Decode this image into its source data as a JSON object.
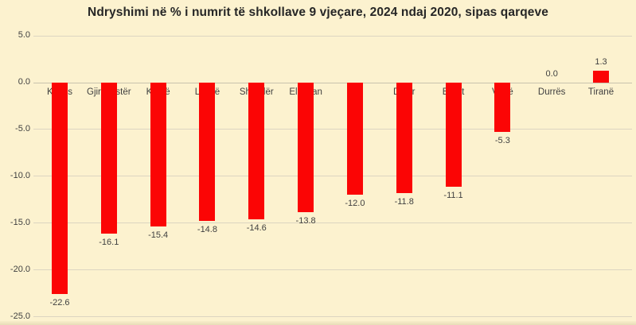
{
  "chart_data": {
    "type": "bar",
    "title": "Ndryshimi në % i numrit të shkollave 9 vjeçare, 2024 ndaj 2020, sipas qarqeve",
    "categories": [
      "Kukës",
      "Gjirokastër",
      "Korçë",
      "Lezhë",
      "Shkodër",
      "Elbasan",
      "Fier",
      "Dibër",
      "Berat",
      "Vlorë",
      "Durrës",
      "Tiranë"
    ],
    "values": [
      -22.6,
      -16.1,
      -15.4,
      -14.8,
      -14.6,
      -13.8,
      -12.0,
      -11.8,
      -11.1,
      -5.3,
      0.0,
      1.3
    ],
    "y_ticks": [
      5.0,
      0.0,
      -5.0,
      -10.0,
      -15.0,
      -20.0,
      -25.0
    ],
    "ylim": [
      -25.0,
      5.0
    ],
    "xlabel": "",
    "ylabel": "",
    "grid": true,
    "legend": false,
    "data_labels": true,
    "bar_color": "#fb0505",
    "background_color": "#fcf2cf",
    "gridline_color": "#dcd5c1",
    "label_color": "#404040",
    "title_color": "#262626"
  }
}
